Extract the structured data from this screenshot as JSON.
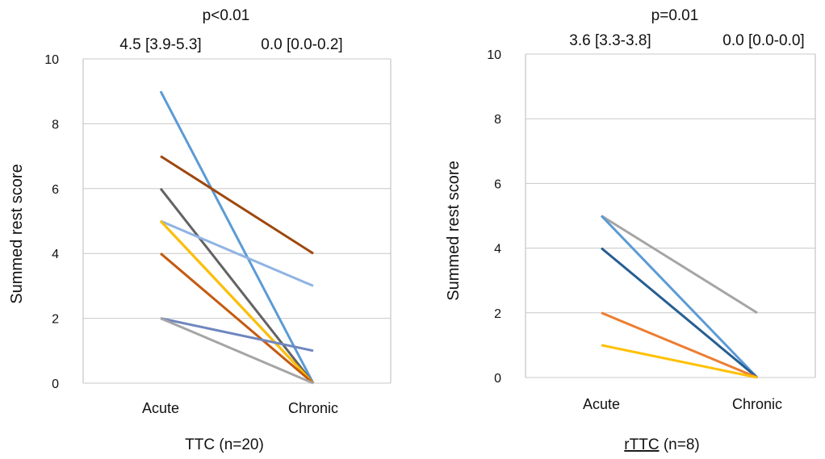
{
  "chart_data": [
    {
      "type": "line",
      "pvalue": "p<0.01",
      "medians": [
        "4.5 [3.9-5.3]",
        "0.0 [0.0-0.2]"
      ],
      "categories": [
        "Acute",
        "Chronic"
      ],
      "ylabel": "Summed rest score",
      "xlabel": "TTC (n=20)",
      "ylim": [
        0,
        10
      ],
      "yticks": [
        "0",
        "2",
        "4",
        "6",
        "8",
        "10"
      ],
      "grid": true,
      "series": [
        {
          "values": [
            9,
            0
          ],
          "color": "#5b9bd5"
        },
        {
          "values": [
            7,
            4
          ],
          "color": "#9e480e"
        },
        {
          "values": [
            6,
            0
          ],
          "color": "#636363"
        },
        {
          "values": [
            5,
            3
          ],
          "color": "#8fb4e3"
        },
        {
          "values": [
            5,
            0
          ],
          "color": "#997300"
        },
        {
          "values": [
            5,
            0
          ],
          "color": "#ffc000"
        },
        {
          "values": [
            4,
            0
          ],
          "color": "#c55a11"
        },
        {
          "values": [
            2,
            1
          ],
          "color": "#6f86bf"
        },
        {
          "values": [
            2,
            0
          ],
          "color": "#a5a5a5"
        }
      ]
    },
    {
      "type": "line",
      "pvalue": "p=0.01",
      "medians": [
        "3.6 [3.3-3.8]",
        "0.0 [0.0-0.0]"
      ],
      "categories": [
        "Acute",
        "Chronic"
      ],
      "ylabel": "Summed rest score",
      "xlabel": "rTTC (n=8)",
      "xlabel_parts": [
        "rTTC",
        " (n=8)"
      ],
      "ylim": [
        0,
        10
      ],
      "yticks": [
        "0",
        "2",
        "4",
        "6",
        "8",
        "10"
      ],
      "grid": true,
      "series": [
        {
          "values": [
            5,
            2
          ],
          "color": "#a5a5a5"
        },
        {
          "values": [
            5,
            0
          ],
          "color": "#5b9bd5"
        },
        {
          "values": [
            4,
            0
          ],
          "color": "#255e91"
        },
        {
          "values": [
            2,
            0
          ],
          "color": "#ed7d31"
        },
        {
          "values": [
            1,
            0
          ],
          "color": "#ffc000"
        }
      ]
    }
  ]
}
